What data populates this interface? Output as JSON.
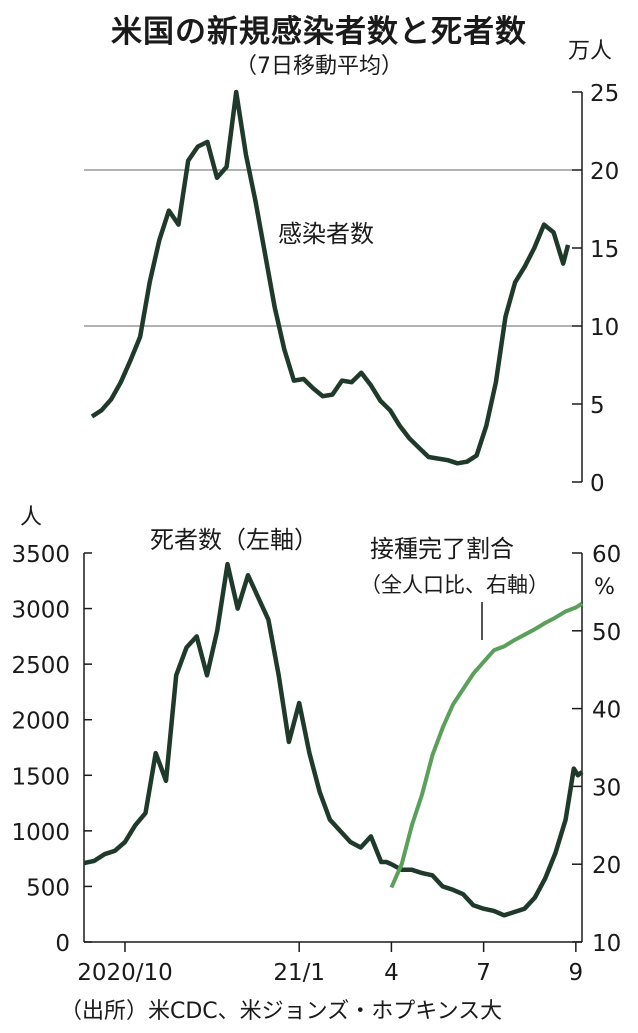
{
  "title": "米国の新規感染者数と死者数",
  "subtitle": "（7日移動平均）",
  "source": "（出所）米CDC、米ジョンズ・ホプキンス大",
  "colors": {
    "dark_line": "#1f3a2a",
    "light_line": "#5aa05a",
    "grid": "#666666",
    "axis": "#1a1a1a"
  },
  "chart_data": [
    {
      "type": "line",
      "title": "",
      "unit_label": "万人",
      "series_label": "感染者数",
      "ylim": [
        0,
        25
      ],
      "yticks": [
        0,
        5,
        10,
        15,
        20,
        25
      ],
      "grid_lines": [
        10,
        20
      ],
      "xlim": [
        0,
        49.5
      ],
      "series": [
        {
          "name": "感染者数",
          "x": [
            0,
            1,
            2,
            3,
            4,
            5,
            6,
            7,
            8,
            9,
            10,
            11,
            12,
            13,
            14,
            15,
            16,
            17,
            18,
            19,
            20,
            21,
            22,
            23,
            24,
            25,
            26,
            27,
            28,
            29,
            30,
            31,
            32,
            33,
            34,
            35,
            36,
            37,
            38,
            39,
            40,
            41,
            42,
            43,
            44,
            45,
            46,
            47,
            48,
            49,
            49.5
          ],
          "y": [
            4.2,
            4.6,
            5.3,
            6.4,
            7.8,
            9.3,
            12.8,
            15.5,
            17.4,
            16.5,
            20.6,
            21.5,
            21.8,
            19.5,
            20.2,
            25.0,
            21.0,
            18.0,
            14.6,
            11.2,
            8.5,
            6.5,
            6.6,
            6.0,
            5.5,
            5.6,
            6.5,
            6.4,
            7.0,
            6.2,
            5.2,
            4.6,
            3.6,
            2.8,
            2.2,
            1.6,
            1.5,
            1.4,
            1.2,
            1.3,
            1.7,
            3.6,
            6.4,
            10.6,
            12.8,
            13.8,
            15.0,
            16.5,
            16.0,
            14.0,
            15.2
          ]
        }
      ]
    },
    {
      "type": "line",
      "title": "",
      "unit_left": "人",
      "unit_right": "%",
      "left_label": "死者数（左軸）",
      "right_label": "接種完了割合",
      "right_label_sub": "（全人口比、右軸）",
      "ylim": [
        0,
        3500
      ],
      "yticks": [
        0,
        500,
        1000,
        1500,
        2000,
        2500,
        3000,
        3500
      ],
      "ylim_right": [
        10,
        60
      ],
      "yticks_right": [
        10,
        20,
        30,
        40,
        50,
        60
      ],
      "xticks": [
        {
          "x": 0,
          "label": "2020/10"
        },
        {
          "x": 17,
          "label": "21/1"
        },
        {
          "x": 26,
          "label": "4"
        },
        {
          "x": 35,
          "label": "7"
        },
        {
          "x": 44,
          "label": "9"
        }
      ],
      "xlim": [
        -4,
        44.6
      ],
      "series": [
        {
          "name": "死者数",
          "axis": "left",
          "x": [
            -4,
            -3,
            -2,
            -1,
            0,
            1,
            2,
            3,
            4,
            5,
            6,
            7,
            8,
            9,
            10,
            11,
            12,
            13,
            14,
            15,
            16,
            17,
            18,
            19,
            20,
            21,
            22,
            23,
            24,
            25,
            25.5,
            26,
            27,
            28,
            29,
            30,
            31,
            32,
            33,
            34,
            35,
            36,
            37,
            38,
            39,
            40,
            41,
            42,
            43,
            43.8,
            44.2,
            44.6
          ],
          "y": [
            710,
            730,
            790,
            820,
            900,
            1050,
            1160,
            1700,
            1450,
            2400,
            2650,
            2750,
            2400,
            2800,
            3400,
            3000,
            3300,
            3100,
            2900,
            2400,
            1800,
            2150,
            1700,
            1350,
            1100,
            1000,
            900,
            850,
            950,
            720,
            720,
            700,
            650,
            650,
            620,
            600,
            500,
            470,
            430,
            330,
            300,
            280,
            240,
            270,
            300,
            400,
            570,
            800,
            1100,
            1560,
            1500,
            1530
          ]
        },
        {
          "name": "接種完了割合",
          "axis": "right",
          "x": [
            26,
            27,
            28,
            29,
            30,
            31,
            32,
            33,
            34,
            35,
            36,
            37,
            38,
            39,
            40,
            41,
            42,
            43,
            44,
            44.6
          ],
          "y": [
            17,
            20,
            25,
            29,
            34,
            37.5,
            40.5,
            42.5,
            44.5,
            46,
            47.5,
            48,
            48.8,
            49.5,
            50.2,
            51,
            51.7,
            52.5,
            53,
            53.5
          ]
        }
      ]
    }
  ]
}
